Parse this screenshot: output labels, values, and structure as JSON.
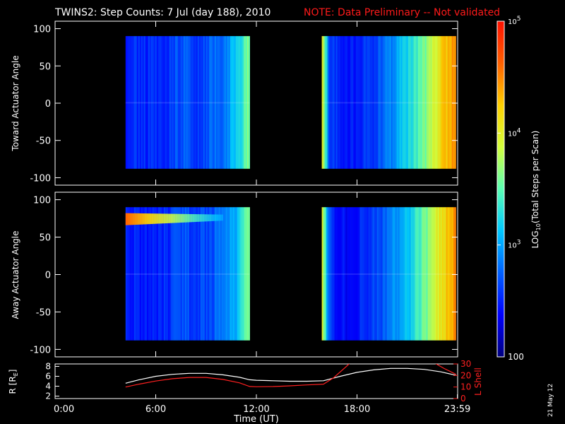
{
  "header": {
    "title": "TWINS2: Step Counts:  7 Jul (day 188), 2010",
    "note": "NOTE: Data Preliminary -- Not validated"
  },
  "side_stamp": "21 May 12",
  "colors": {
    "background": "#000000",
    "foreground": "#ffffff",
    "note": "#ff1a1a",
    "lshell": "#ff2020",
    "colormap": [
      "#00007f",
      "#0000ff",
      "#0060ff",
      "#00c8ff",
      "#5affb4",
      "#d4ff3c",
      "#ffd000",
      "#ff6000",
      "#ff1000"
    ]
  },
  "chart_data": [
    {
      "type": "heatmap",
      "id": "toward",
      "ylabel": "Toward Actuator Angle",
      "ylim": [
        -110,
        110
      ],
      "yticks": [
        -100,
        -50,
        0,
        50,
        100
      ],
      "ytick_labels": [
        "-100",
        "-50",
        "0",
        "50",
        "100"
      ],
      "xlim": [
        0,
        24
      ],
      "angle_range": [
        -88,
        90
      ],
      "intervals": [
        [
          4.2,
          11.6
        ],
        [
          15.9,
          23.9
        ]
      ],
      "log_columns": [
        {
          "t": 4.2,
          "v": 2.55
        },
        {
          "t": 5.5,
          "v": 2.52
        },
        {
          "t": 6.8,
          "v": 2.58
        },
        {
          "t": 7.6,
          "v": 2.72
        },
        {
          "t": 8.3,
          "v": 2.6
        },
        {
          "t": 9.2,
          "v": 2.75
        },
        {
          "t": 10.0,
          "v": 2.85
        },
        {
          "t": 10.7,
          "v": 3.1
        },
        {
          "t": 11.2,
          "v": 3.45
        },
        {
          "t": 11.6,
          "v": 3.65
        },
        {
          "t": 15.9,
          "v": 4.1
        },
        {
          "t": 16.3,
          "v": 2.7
        },
        {
          "t": 17.0,
          "v": 2.45
        },
        {
          "t": 18.0,
          "v": 2.5
        },
        {
          "t": 19.0,
          "v": 2.65
        },
        {
          "t": 20.0,
          "v": 2.9
        },
        {
          "t": 21.0,
          "v": 3.2
        },
        {
          "t": 22.0,
          "v": 3.6
        },
        {
          "t": 23.0,
          "v": 4.15
        },
        {
          "t": 23.9,
          "v": 4.55
        }
      ]
    },
    {
      "type": "heatmap",
      "id": "away",
      "ylabel": "Away Actuator Angle",
      "ylim": [
        -110,
        110
      ],
      "yticks": [
        -100,
        -50,
        0,
        50,
        100
      ],
      "ytick_labels": [
        "-100",
        "-50",
        "0",
        "50",
        "100"
      ],
      "xlim": [
        0,
        24
      ],
      "angle_range": [
        -88,
        90
      ],
      "intervals": [
        [
          4.2,
          11.6
        ],
        [
          15.9,
          23.9
        ]
      ],
      "log_columns": [
        {
          "t": 4.2,
          "v": 2.5
        },
        {
          "t": 5.5,
          "v": 2.48
        },
        {
          "t": 6.8,
          "v": 2.55
        },
        {
          "t": 7.6,
          "v": 2.7
        },
        {
          "t": 8.3,
          "v": 2.58
        },
        {
          "t": 9.2,
          "v": 2.7
        },
        {
          "t": 10.0,
          "v": 2.8
        },
        {
          "t": 10.7,
          "v": 3.05
        },
        {
          "t": 11.2,
          "v": 3.4
        },
        {
          "t": 11.6,
          "v": 3.6
        },
        {
          "t": 15.9,
          "v": 4.0
        },
        {
          "t": 16.3,
          "v": 2.65
        },
        {
          "t": 17.0,
          "v": 2.4
        },
        {
          "t": 18.0,
          "v": 2.48
        },
        {
          "t": 19.0,
          "v": 2.62
        },
        {
          "t": 20.0,
          "v": 2.85
        },
        {
          "t": 21.0,
          "v": 3.15
        },
        {
          "t": 22.0,
          "v": 3.55
        },
        {
          "t": 23.0,
          "v": 4.1
        },
        {
          "t": 23.9,
          "v": 4.5
        }
      ],
      "hot_band": {
        "angle_min": 66,
        "angle_max": 82,
        "t_from": 4.2,
        "t_to": 10.0,
        "log_peak": 4.6
      }
    },
    {
      "type": "line",
      "id": "orbit",
      "xlim": [
        0,
        24
      ],
      "ylabel_left": "R [R",
      "ylabel_left_sub": "E",
      "ylabel_left_end": "]",
      "ylim_left": [
        1.5,
        8.5
      ],
      "yticks_left": [
        2,
        4,
        6,
        8
      ],
      "ytick_labels_left": [
        "2",
        "4",
        "6",
        "8"
      ],
      "ylabel_right": "L Shell",
      "ylim_right": [
        0,
        30
      ],
      "yticks_right": [
        0,
        10,
        20,
        30
      ],
      "ytick_labels_right": [
        "0",
        "10",
        "20",
        "30"
      ],
      "xticks": [
        0,
        6,
        12,
        18,
        23.983
      ],
      "xtick_labels": [
        "0:00",
        "6:00",
        "12:00",
        "18:00",
        "23:59"
      ],
      "xlabel": "Time (UT)",
      "series": [
        {
          "name": "R [RE]",
          "axis": "left",
          "x": [
            4.2,
            5,
            6,
            7,
            8,
            9,
            10,
            11,
            11.6,
            12,
            13,
            14,
            15,
            16,
            17,
            18,
            19,
            20,
            21,
            22,
            23,
            23.9
          ],
          "y": [
            4.6,
            5.3,
            6.0,
            6.4,
            6.6,
            6.6,
            6.3,
            5.8,
            5.3,
            5.2,
            5.1,
            5.0,
            5.0,
            5.1,
            6.0,
            6.8,
            7.3,
            7.6,
            7.6,
            7.4,
            6.9,
            6.2
          ]
        },
        {
          "name": "L Shell",
          "axis": "right",
          "x": [
            4.2,
            5,
            6,
            7,
            8,
            9,
            10,
            11,
            11.6,
            12,
            13,
            14,
            15,
            16,
            16.6,
            17.3,
            17.6
          ],
          "y": [
            10,
            12.5,
            15.2,
            17.2,
            18.3,
            18.3,
            16.6,
            13.6,
            10.5,
            10.2,
            10.4,
            11.0,
            11.8,
            12.5,
            18,
            27,
            31
          ],
          "x2": [
            22.6,
            23.2,
            23.9
          ],
          "y2": [
            31,
            26,
            21
          ]
        }
      ]
    }
  ],
  "colorbar": {
    "label": "LOG",
    "label_sub": "10",
    "label_rest": "(Total Steps per Scan)",
    "range_log": [
      2,
      5
    ],
    "ticks_log": [
      2,
      3,
      4,
      5
    ],
    "tick_labels": [
      {
        "base": "100",
        "exp": ""
      },
      {
        "base": "10",
        "exp": "3"
      },
      {
        "base": "10",
        "exp": "4"
      },
      {
        "base": "10",
        "exp": "5"
      }
    ]
  }
}
